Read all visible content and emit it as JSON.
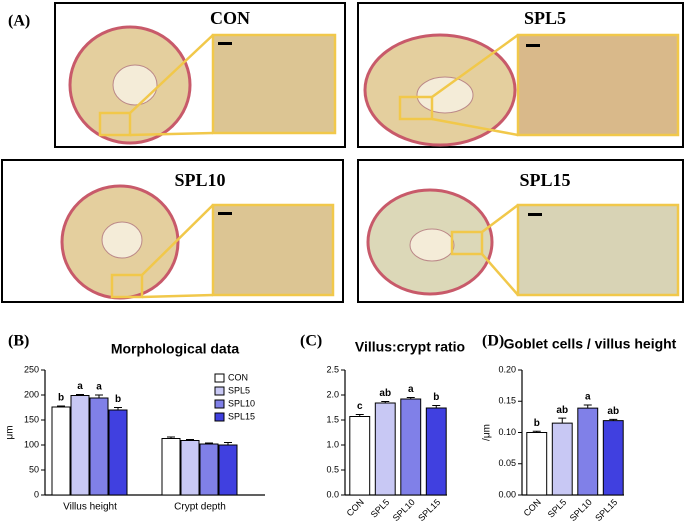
{
  "figure_label": "(A)",
  "image_panels": [
    "CON",
    "SPL5",
    "SPL10",
    "SPL15"
  ],
  "chart_data": [
    {
      "type": "grouped_bar",
      "panel": "(B)",
      "title": "Morphological data",
      "ylabel": "μm",
      "categories": [
        "Villus height",
        "Crypt depth"
      ],
      "series": [
        {
          "name": "CON",
          "color": "#ffffff",
          "values": [
            176,
            113
          ],
          "errors": [
            2,
            3
          ],
          "letters": [
            "b",
            null
          ]
        },
        {
          "name": "SPL5",
          "color": "#c8c8f4",
          "values": [
            199,
            109
          ],
          "errors": [
            2,
            2
          ],
          "letters": [
            "a",
            null
          ]
        },
        {
          "name": "SPL10",
          "color": "#8080e8",
          "values": [
            194,
            102
          ],
          "errors": [
            6,
            2
          ],
          "letters": [
            "a",
            null
          ]
        },
        {
          "name": "SPL15",
          "color": "#4040e0",
          "values": [
            170,
            100
          ],
          "errors": [
            5,
            5
          ],
          "letters": [
            "b",
            null
          ]
        }
      ],
      "ylim": [
        0,
        250
      ],
      "yticks": [
        0,
        50,
        100,
        150,
        200,
        250
      ]
    },
    {
      "type": "bar",
      "panel": "(C)",
      "title": "Villus:crypt ratio",
      "categories": [
        "CON",
        "SPL5",
        "SPL10",
        "SPL15"
      ],
      "values": [
        1.57,
        1.84,
        1.92,
        1.74
      ],
      "errors": [
        0.04,
        0.03,
        0.03,
        0.05
      ],
      "letters": [
        "c",
        "ab",
        "a",
        "b"
      ],
      "colors": [
        "#ffffff",
        "#c8c8f4",
        "#8080e8",
        "#4040e0"
      ],
      "ylim": [
        0,
        2.5
      ],
      "yticks": [
        {
          "value": 0,
          "label": "0.0"
        },
        0.5,
        {
          "value": 1,
          "label": "1.0"
        },
        1.5,
        {
          "value": 2,
          "label": "2.0"
        },
        2.5
      ]
    },
    {
      "type": "bar",
      "panel": "(D)",
      "title": "Goblet cells / villus height",
      "ylabel": "/μm",
      "categories": [
        "CON",
        "SPL5",
        "SPL10",
        "SPL15"
      ],
      "values": [
        0.1,
        0.115,
        0.139,
        0.119
      ],
      "errors": [
        0.002,
        0.008,
        0.005,
        0.002
      ],
      "letters": [
        "b",
        "ab",
        "a",
        "ab"
      ],
      "colors": [
        "#ffffff",
        "#c8c8f4",
        "#8080e8",
        "#4040e0"
      ],
      "ylim": [
        0,
        0.2
      ],
      "yticks": [
        {
          "value": 0,
          "label": "0.00"
        },
        {
          "value": 0.05,
          "label": "0.05"
        },
        {
          "value": 0.1,
          "label": "0.10"
        },
        {
          "value": 0.15,
          "label": "0.15"
        },
        {
          "value": 0.2,
          "label": "0.20"
        }
      ]
    }
  ]
}
